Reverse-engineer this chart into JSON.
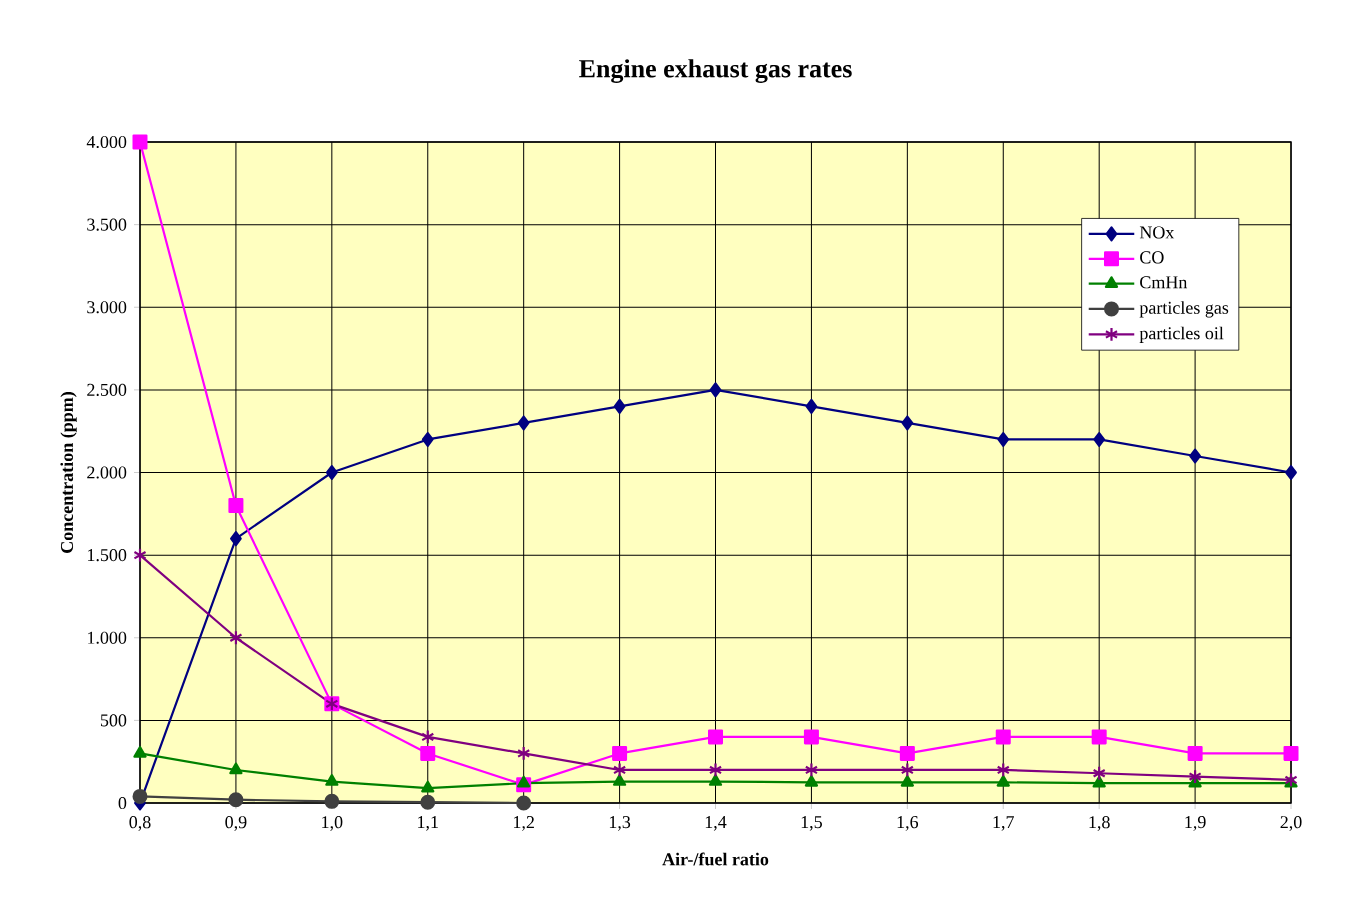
{
  "chart_data": {
    "type": "line",
    "title": "Engine exhaust gas rates",
    "xlabel": "Air-/fuel ratio",
    "ylabel": "Concentration (ppm)",
    "x": [
      0.8,
      0.9,
      1.0,
      1.1,
      1.2,
      1.3,
      1.4,
      1.5,
      1.6,
      1.7,
      1.8,
      1.9,
      2.0
    ],
    "series": [
      {
        "name": "NOx",
        "color": "#000080",
        "marker": "diamond",
        "values": [
          0,
          1600,
          2000,
          2200,
          2300,
          2400,
          2500,
          2400,
          2300,
          2200,
          2200,
          2100,
          2000
        ]
      },
      {
        "name": "CO",
        "color": "#ff00ff",
        "marker": "square",
        "values": [
          4000,
          1800,
          600,
          300,
          110,
          300,
          400,
          400,
          300,
          400,
          400,
          300,
          300
        ]
      },
      {
        "name": "CmHn",
        "color": "#008000",
        "marker": "triangle",
        "values": [
          300,
          200,
          130,
          90,
          120,
          130,
          130,
          125,
          125,
          125,
          120,
          120,
          120
        ]
      },
      {
        "name": "particles gas",
        "color": "#404040",
        "marker": "circle",
        "values": [
          40,
          20,
          10,
          5,
          0,
          null,
          null,
          null,
          null,
          null,
          null,
          null,
          null
        ]
      },
      {
        "name": "particles oil",
        "color": "#800080",
        "marker": "cross",
        "values": [
          1500,
          1000,
          600,
          400,
          300,
          200,
          200,
          200,
          200,
          200,
          180,
          160,
          140
        ]
      }
    ],
    "xlim": [
      0.8,
      2.0
    ],
    "xticks": [
      {
        "value": 0.8,
        "label": "0,8"
      },
      {
        "value": 0.9,
        "label": "0,9"
      },
      {
        "value": 1.0,
        "label": "1,0"
      },
      {
        "value": 1.1,
        "label": "1,1"
      },
      {
        "value": 1.2,
        "label": "1,2"
      },
      {
        "value": 1.3,
        "label": "1,3"
      },
      {
        "value": 1.4,
        "label": "1,4"
      },
      {
        "value": 1.5,
        "label": "1,5"
      },
      {
        "value": 1.6,
        "label": "1,6"
      },
      {
        "value": 1.7,
        "label": "1,7"
      },
      {
        "value": 1.8,
        "label": "1,8"
      },
      {
        "value": 1.9,
        "label": "1,9"
      },
      {
        "value": 2.0,
        "label": "2,0"
      }
    ],
    "ylim": [
      0,
      4000
    ],
    "yticks": [
      0,
      500,
      {
        "value": 1000,
        "label": "1.000"
      },
      {
        "value": 1500,
        "label": "1.500"
      },
      {
        "value": 2000,
        "label": "2.000"
      },
      {
        "value": 2500,
        "label": "2.500"
      },
      {
        "value": 3000,
        "label": "3.000"
      },
      {
        "value": 3500,
        "label": "3.500"
      },
      {
        "value": 4000,
        "label": "4.000"
      }
    ],
    "grid": true,
    "legend": "top right",
    "line_style": "solid"
  }
}
